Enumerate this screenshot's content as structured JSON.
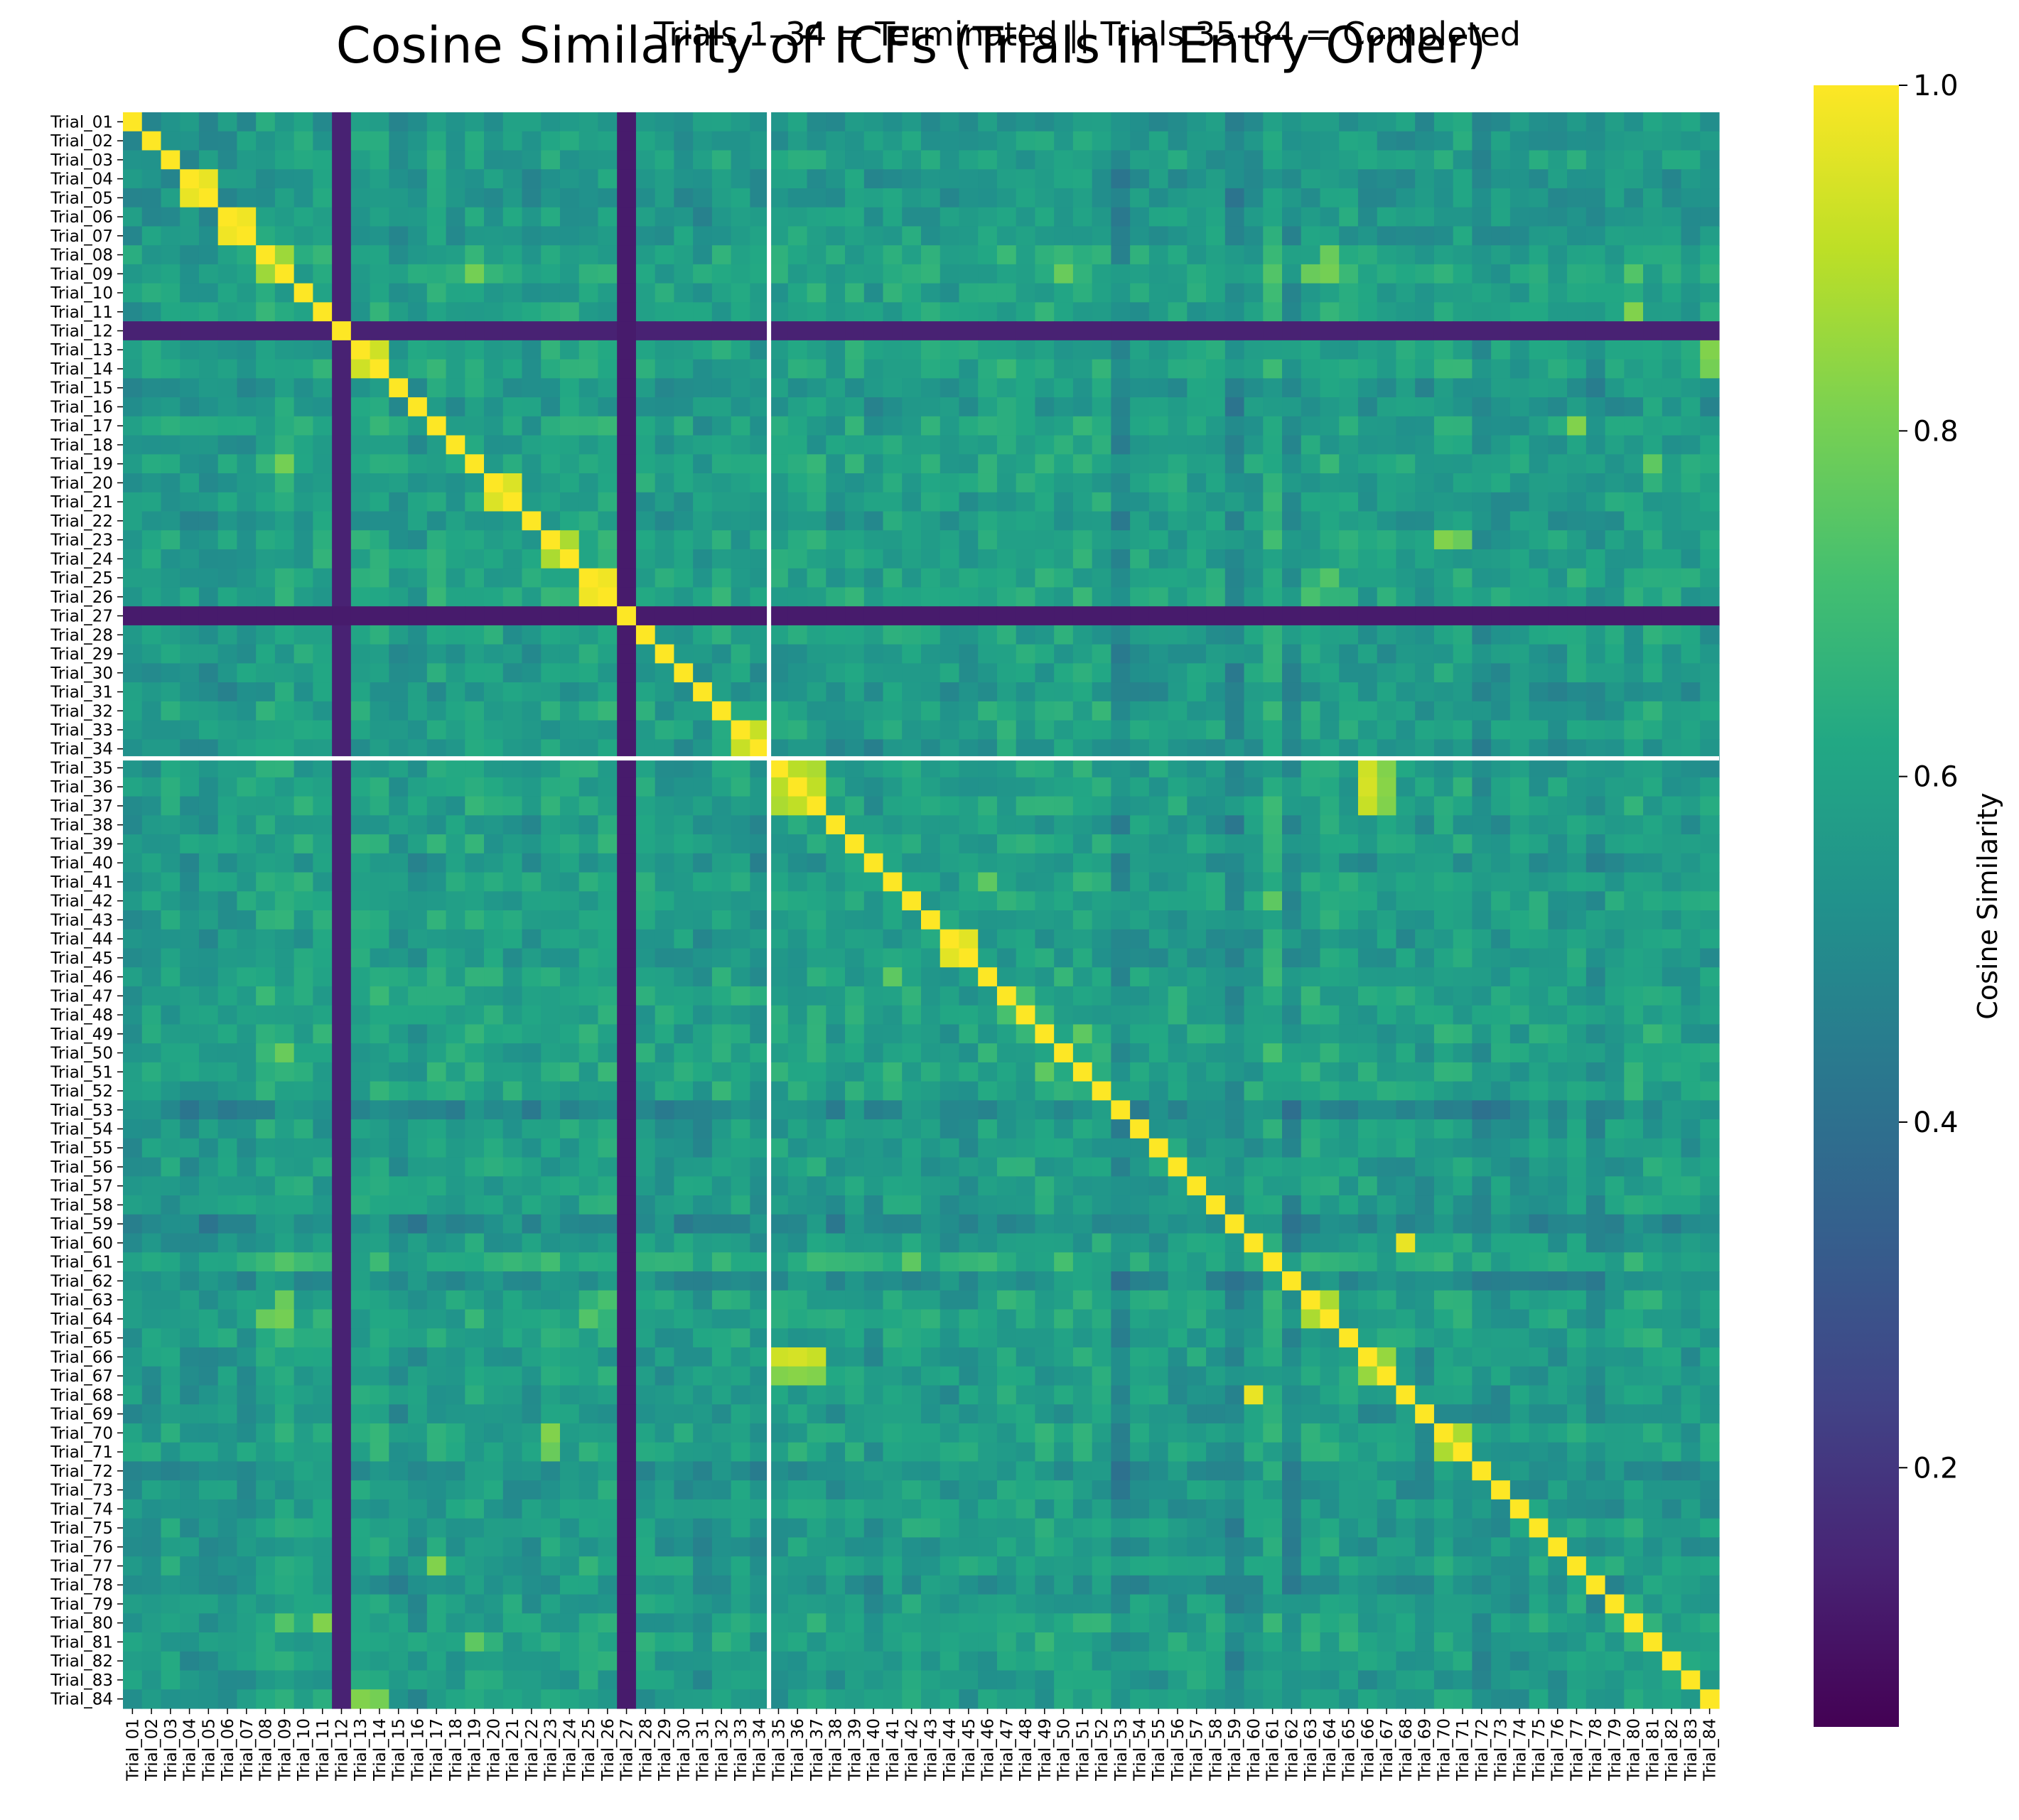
{
  "chart_data": {
    "type": "heatmap",
    "title": "Cosine Similarity of ICFs (Trials in Entry Order)",
    "subtitle": "Trials 1–34 = Terminated  ||  Trials 35–84 = Completed",
    "xlabel": "",
    "ylabel": "",
    "colorbar_label": "Cosine Similarity",
    "colormap": "viridis",
    "vmin": 0.05,
    "vmax": 1.0,
    "colorbar_ticks": [
      0.2,
      0.4,
      0.6,
      0.8,
      1.0
    ],
    "colorbar_tick_labels": [
      "0.2",
      "0.4",
      "0.6",
      "0.8",
      "1.0"
    ],
    "n_trials": 84,
    "group_split_after": 34,
    "groups": [
      {
        "label": "Terminated",
        "trials": [
          1,
          34
        ]
      },
      {
        "label": "Completed",
        "trials": [
          35,
          84
        ]
      }
    ],
    "labels": [
      "Trial_01",
      "Trial_02",
      "Trial_03",
      "Trial_04",
      "Trial_05",
      "Trial_06",
      "Trial_07",
      "Trial_08",
      "Trial_09",
      "Trial_10",
      "Trial_11",
      "Trial_12",
      "Trial_13",
      "Trial_14",
      "Trial_15",
      "Trial_16",
      "Trial_17",
      "Trial_18",
      "Trial_19",
      "Trial_20",
      "Trial_21",
      "Trial_22",
      "Trial_23",
      "Trial_24",
      "Trial_25",
      "Trial_26",
      "Trial_27",
      "Trial_28",
      "Trial_29",
      "Trial_30",
      "Trial_31",
      "Trial_32",
      "Trial_33",
      "Trial_34",
      "Trial_35",
      "Trial_36",
      "Trial_37",
      "Trial_38",
      "Trial_39",
      "Trial_40",
      "Trial_41",
      "Trial_42",
      "Trial_43",
      "Trial_44",
      "Trial_45",
      "Trial_46",
      "Trial_47",
      "Trial_48",
      "Trial_49",
      "Trial_50",
      "Trial_51",
      "Trial_52",
      "Trial_53",
      "Trial_54",
      "Trial_55",
      "Trial_56",
      "Trial_57",
      "Trial_58",
      "Trial_59",
      "Trial_60",
      "Trial_61",
      "Trial_62",
      "Trial_63",
      "Trial_64",
      "Trial_65",
      "Trial_66",
      "Trial_67",
      "Trial_68",
      "Trial_69",
      "Trial_70",
      "Trial_71",
      "Trial_72",
      "Trial_73",
      "Trial_74",
      "Trial_75",
      "Trial_76",
      "Trial_77",
      "Trial_78",
      "Trial_79",
      "Trial_80",
      "Trial_81",
      "Trial_82",
      "Trial_83",
      "Trial_84"
    ],
    "diagonal_value": 1.0,
    "typical_off_diagonal": 0.58,
    "row_means": [
      0.53,
      0.55,
      0.57,
      0.52,
      0.52,
      0.55,
      0.55,
      0.62,
      0.64,
      0.6,
      0.6,
      0.14,
      0.6,
      0.62,
      0.53,
      0.53,
      0.61,
      0.56,
      0.62,
      0.6,
      0.58,
      0.55,
      0.6,
      0.6,
      0.61,
      0.62,
      0.12,
      0.58,
      0.56,
      0.56,
      0.52,
      0.6,
      0.58,
      0.53,
      0.58,
      0.6,
      0.6,
      0.55,
      0.6,
      0.52,
      0.6,
      0.59,
      0.58,
      0.55,
      0.55,
      0.6,
      0.62,
      0.61,
      0.61,
      0.62,
      0.62,
      0.62,
      0.44,
      0.56,
      0.57,
      0.57,
      0.59,
      0.56,
      0.44,
      0.56,
      0.68,
      0.47,
      0.6,
      0.61,
      0.6,
      0.56,
      0.56,
      0.55,
      0.52,
      0.6,
      0.6,
      0.5,
      0.54,
      0.55,
      0.57,
      0.55,
      0.6,
      0.5,
      0.56,
      0.6,
      0.62,
      0.57,
      0.56,
      0.55
    ],
    "high_pairs": [
      {
        "a": 4,
        "b": 5,
        "value": 0.97
      },
      {
        "a": 6,
        "b": 7,
        "value": 0.98
      },
      {
        "a": 8,
        "b": 9,
        "value": 0.86
      },
      {
        "a": 13,
        "b": 14,
        "value": 0.93
      },
      {
        "a": 20,
        "b": 21,
        "value": 0.95
      },
      {
        "a": 23,
        "b": 24,
        "value": 0.88
      },
      {
        "a": 25,
        "b": 26,
        "value": 0.98
      },
      {
        "a": 33,
        "b": 34,
        "value": 0.92
      },
      {
        "a": 35,
        "b": 36,
        "value": 0.9
      },
      {
        "a": 35,
        "b": 37,
        "value": 0.88
      },
      {
        "a": 36,
        "b": 37,
        "value": 0.91
      },
      {
        "a": 35,
        "b": 66,
        "value": 0.93
      },
      {
        "a": 36,
        "b": 66,
        "value": 0.94
      },
      {
        "a": 37,
        "b": 66,
        "value": 0.92
      },
      {
        "a": 35,
        "b": 67,
        "value": 0.82
      },
      {
        "a": 36,
        "b": 67,
        "value": 0.83
      },
      {
        "a": 37,
        "b": 67,
        "value": 0.82
      },
      {
        "a": 66,
        "b": 67,
        "value": 0.85
      },
      {
        "a": 44,
        "b": 45,
        "value": 0.96
      },
      {
        "a": 60,
        "b": 68,
        "value": 0.97
      },
      {
        "a": 63,
        "b": 64,
        "value": 0.88
      },
      {
        "a": 70,
        "b": 71,
        "value": 0.88
      },
      {
        "a": 23,
        "b": 70,
        "value": 0.82
      },
      {
        "a": 23,
        "b": 71,
        "value": 0.78
      },
      {
        "a": 11,
        "b": 80,
        "value": 0.82
      },
      {
        "a": 13,
        "b": 84,
        "value": 0.82
      },
      {
        "a": 14,
        "b": 84,
        "value": 0.8
      },
      {
        "a": 17,
        "b": 77,
        "value": 0.82
      },
      {
        "a": 9,
        "b": 19,
        "value": 0.8
      },
      {
        "a": 9,
        "b": 63,
        "value": 0.78
      },
      {
        "a": 9,
        "b": 64,
        "value": 0.8
      },
      {
        "a": 8,
        "b": 64,
        "value": 0.78
      },
      {
        "a": 25,
        "b": 64,
        "value": 0.74
      },
      {
        "a": 26,
        "b": 63,
        "value": 0.72
      },
      {
        "a": 9,
        "b": 50,
        "value": 0.78
      },
      {
        "a": 9,
        "b": 80,
        "value": 0.74
      },
      {
        "a": 61,
        "b": 42,
        "value": 0.76
      },
      {
        "a": 61,
        "b": 9,
        "value": 0.74
      },
      {
        "a": 41,
        "b": 46,
        "value": 0.76
      },
      {
        "a": 19,
        "b": 81,
        "value": 0.76
      },
      {
        "a": 49,
        "b": 51,
        "value": 0.76
      },
      {
        "a": 47,
        "b": 48,
        "value": 0.72
      }
    ]
  }
}
